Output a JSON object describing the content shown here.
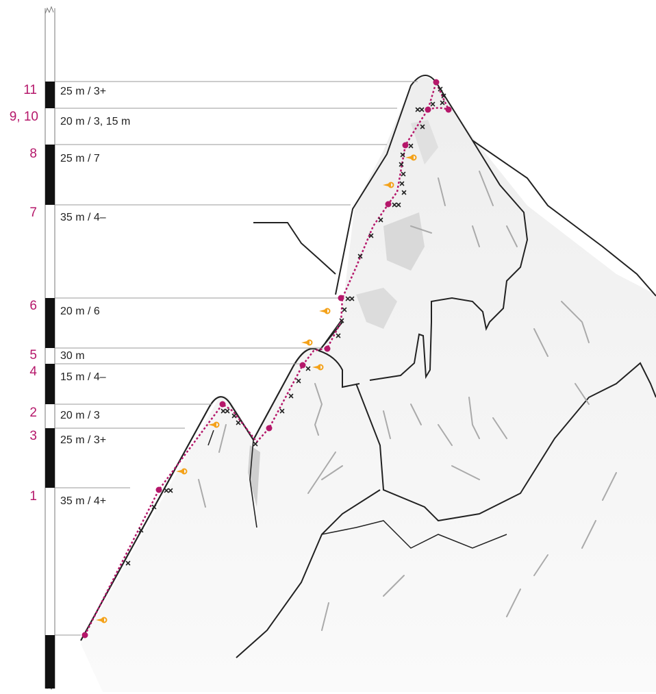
{
  "colors": {
    "route": "#b5176a",
    "belay": "#b5176a",
    "pitch_number": "#b5176a",
    "rock_outline": "#222222",
    "rock_fill": "#f2f2f2",
    "rock_shade": "#d8d8d8",
    "crack": "#a8a8a8",
    "piton": "#f4a21a",
    "bar_black": "#111111"
  },
  "pitches": [
    {
      "number": "11",
      "info": "25 m / 3+"
    },
    {
      "number": "9, 10",
      "info": "20 m / 3, 15 m"
    },
    {
      "number": "8",
      "info": "25 m / 7"
    },
    {
      "number": "7",
      "info": "35 m / 4–"
    },
    {
      "number": "6",
      "info": "20 m / 6"
    },
    {
      "number": "5",
      "info": "30 m"
    },
    {
      "number": "4",
      "info": "15 m / 4–"
    },
    {
      "number": "2",
      "info": "20 m / 3"
    },
    {
      "number": "3",
      "info": "25 m / 3+"
    },
    {
      "number": "1",
      "info": "35 m / 4+"
    }
  ],
  "legend_icons": {
    "belay": "belay-station-icon",
    "bolt": "bolt-x-icon",
    "piton": "piton-icon"
  }
}
